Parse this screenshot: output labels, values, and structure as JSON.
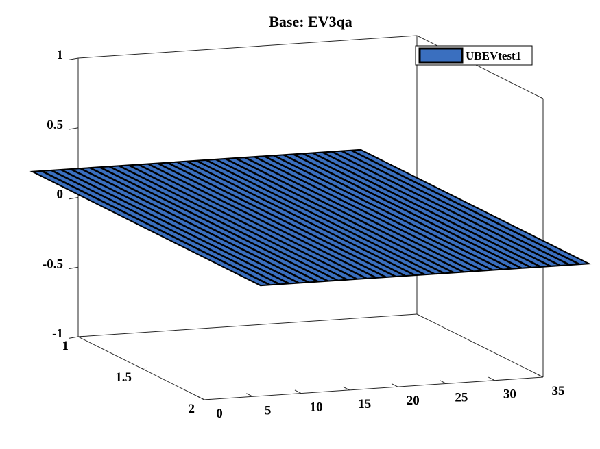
{
  "chart_data": {
    "type": "bar3",
    "title": "Base: EV3qa",
    "xlabel": "",
    "ylabel": "",
    "zlabel": "",
    "x": [
      1,
      2,
      3,
      4,
      5,
      6,
      7,
      8,
      9,
      10,
      11,
      12,
      13,
      14,
      15,
      16,
      17,
      18,
      19,
      20,
      21,
      22,
      23,
      24,
      25,
      26,
      27,
      28,
      29,
      30,
      31,
      32,
      33,
      34
    ],
    "xlim": [
      0,
      35
    ],
    "ylim": [
      1,
      2
    ],
    "zlim": [
      -1,
      1
    ],
    "x_ticks": [
      "0",
      "5",
      "10",
      "15",
      "20",
      "25",
      "30",
      "35"
    ],
    "y_ticks": [
      "1",
      "1.5",
      "2"
    ],
    "z_ticks": [
      "1",
      "0.5",
      "0",
      "-0.5",
      "-1"
    ],
    "series": [
      {
        "name": "UBEVtest1",
        "color": "#3a6fbf",
        "values": [
          0,
          0,
          0,
          0,
          0,
          0,
          0,
          0,
          0,
          0,
          0,
          0,
          0,
          0,
          0,
          0,
          0,
          0,
          0,
          0,
          0,
          0,
          0,
          0,
          0,
          0,
          0,
          0,
          0,
          0,
          0,
          0,
          0,
          0
        ]
      }
    ],
    "legend": {
      "position": "top-right"
    },
    "grid": false
  }
}
